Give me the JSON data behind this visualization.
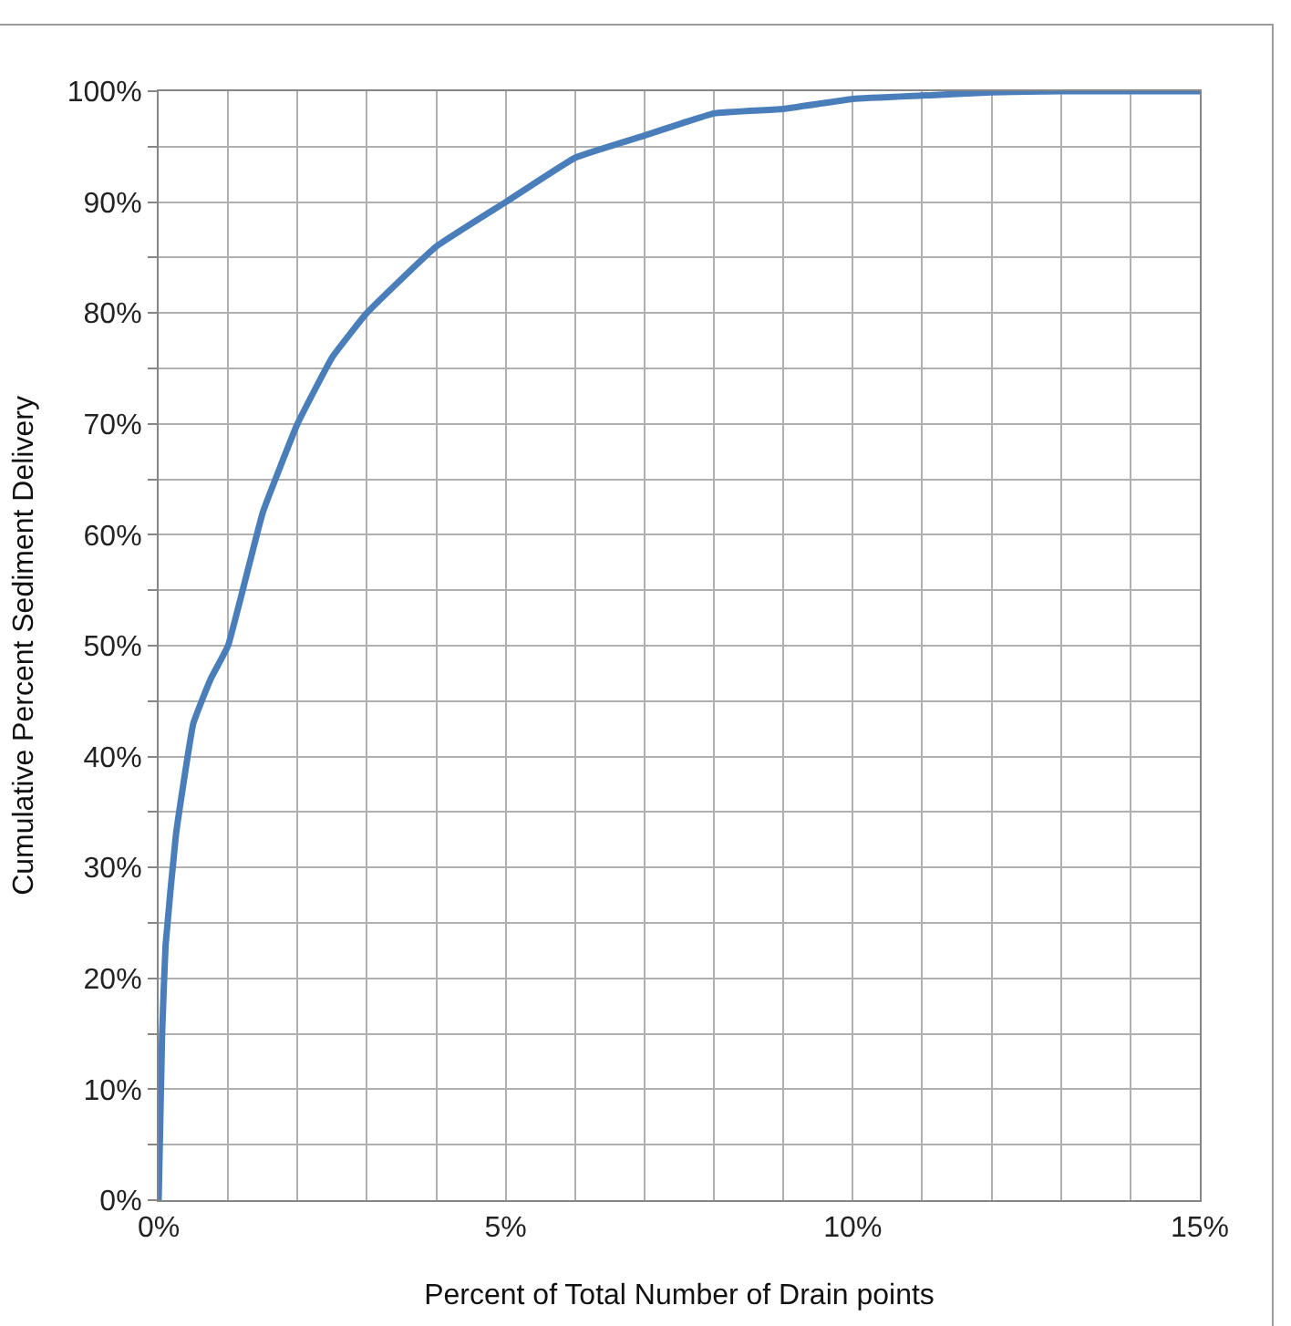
{
  "chart_data": {
    "type": "line",
    "xlabel": "Percent of Total Number of Drain points",
    "ylabel": "Cumulative Percent Sediment Delivery",
    "x": [
      0,
      0.05,
      0.1,
      0.25,
      0.5,
      0.75,
      1,
      1.5,
      2,
      2.5,
      3,
      4,
      5,
      6,
      7,
      8,
      9,
      10,
      11,
      12,
      13,
      15
    ],
    "series": [
      {
        "color": "#4a7ebb",
        "values": [
          0,
          15,
          23,
          33,
          43,
          47,
          50,
          62,
          70,
          76,
          80,
          86,
          90,
          94,
          96,
          98,
          98.4,
          99.3,
          99.6,
          99.9,
          100,
          100
        ]
      }
    ],
    "xlim": [
      0,
      15
    ],
    "xticks": [
      {
        "value": 0,
        "label": "0%"
      },
      {
        "value": 1,
        "label": null
      },
      {
        "value": 2,
        "label": null
      },
      {
        "value": 3,
        "label": null
      },
      {
        "value": 4,
        "label": null
      },
      {
        "value": 5,
        "label": "5%"
      },
      {
        "value": 6,
        "label": null
      },
      {
        "value": 7,
        "label": null
      },
      {
        "value": 8,
        "label": null
      },
      {
        "value": 9,
        "label": null
      },
      {
        "value": 10,
        "label": "10%"
      },
      {
        "value": 11,
        "label": null
      },
      {
        "value": 12,
        "label": null
      },
      {
        "value": 13,
        "label": null
      },
      {
        "value": 14,
        "label": null
      },
      {
        "value": 15,
        "label": "15%"
      }
    ],
    "ylim": [
      0,
      100
    ],
    "yticks": [
      {
        "value": 0,
        "label": "0%"
      },
      {
        "value": 5,
        "label": null
      },
      {
        "value": 10,
        "label": "10%"
      },
      {
        "value": 15,
        "label": null
      },
      {
        "value": 20,
        "label": "20%"
      },
      {
        "value": 25,
        "label": null
      },
      {
        "value": 30,
        "label": "30%"
      },
      {
        "value": 35,
        "label": null
      },
      {
        "value": 40,
        "label": "40%"
      },
      {
        "value": 45,
        "label": null
      },
      {
        "value": 50,
        "label": "50%"
      },
      {
        "value": 55,
        "label": null
      },
      {
        "value": 60,
        "label": "60%"
      },
      {
        "value": 65,
        "label": null
      },
      {
        "value": 70,
        "label": "70%"
      },
      {
        "value": 75,
        "label": null
      },
      {
        "value": 80,
        "label": "80%"
      },
      {
        "value": 85,
        "label": null
      },
      {
        "value": 90,
        "label": "90%"
      },
      {
        "value": 95,
        "label": null
      },
      {
        "value": 100,
        "label": "100%"
      }
    ],
    "grid": true,
    "legend": false,
    "marker": "none",
    "line_style": "solid"
  }
}
